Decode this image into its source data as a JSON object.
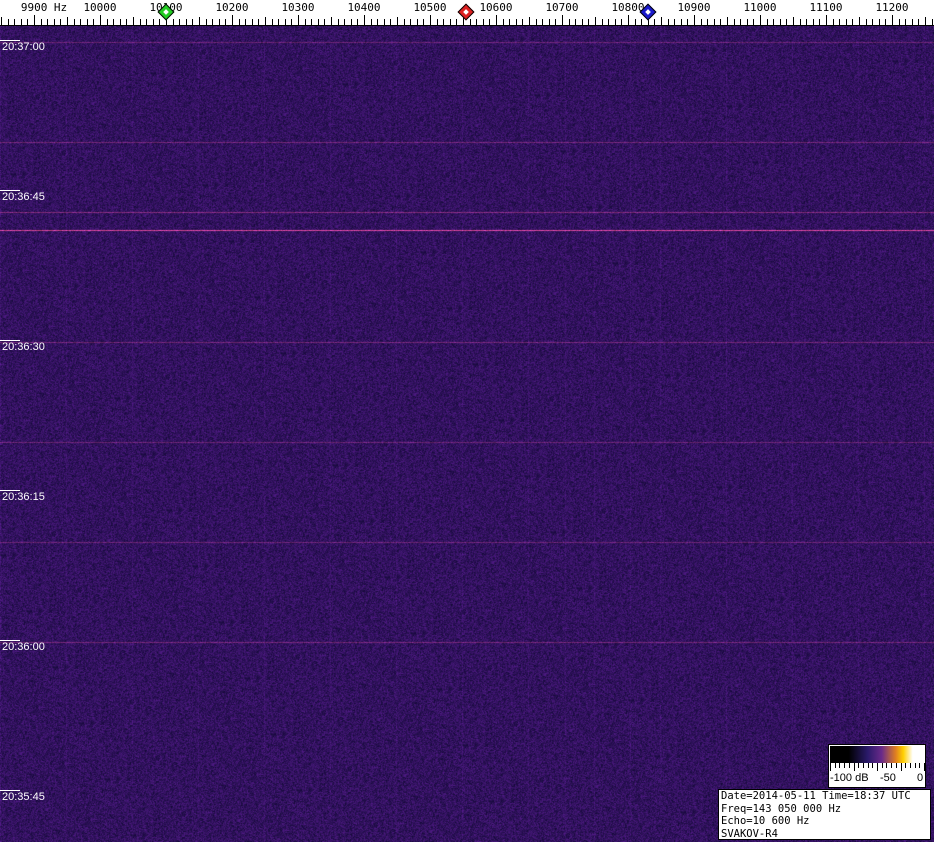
{
  "chart_data": {
    "type": "heatmap",
    "title": "",
    "x_unit_label": "Hz",
    "xlim": [
      9900,
      11270
    ],
    "x_ticks": [
      "9900",
      "10000",
      "10100",
      "10200",
      "10300",
      "10400",
      "10500",
      "10600",
      "10700",
      "10800",
      "10900",
      "11000",
      "11100",
      "11200"
    ],
    "time_labels": [
      "20:37:00",
      "20:36:45",
      "20:36:30",
      "20:36:15",
      "20:36:00",
      "20:35:45"
    ],
    "markers": [
      {
        "name": "green",
        "freq": 10100,
        "color": "#22cc22"
      },
      {
        "name": "red",
        "freq": 10555,
        "color": "#dd2020"
      },
      {
        "name": "blue",
        "freq": 10830,
        "color": "#1a1acc"
      }
    ],
    "colorbar": {
      "labels": [
        "-100 dB",
        "-50",
        "0"
      ],
      "range_db": [
        -100,
        0
      ]
    },
    "background_color": "#1a0f5a"
  },
  "info": {
    "line1": "Date=2014-05-11 Time=18:37 UTC",
    "line2": "Freq=143 050 000 Hz",
    "line3": "Echo=10 600 Hz",
    "line4": "SVAKOV-R4"
  }
}
